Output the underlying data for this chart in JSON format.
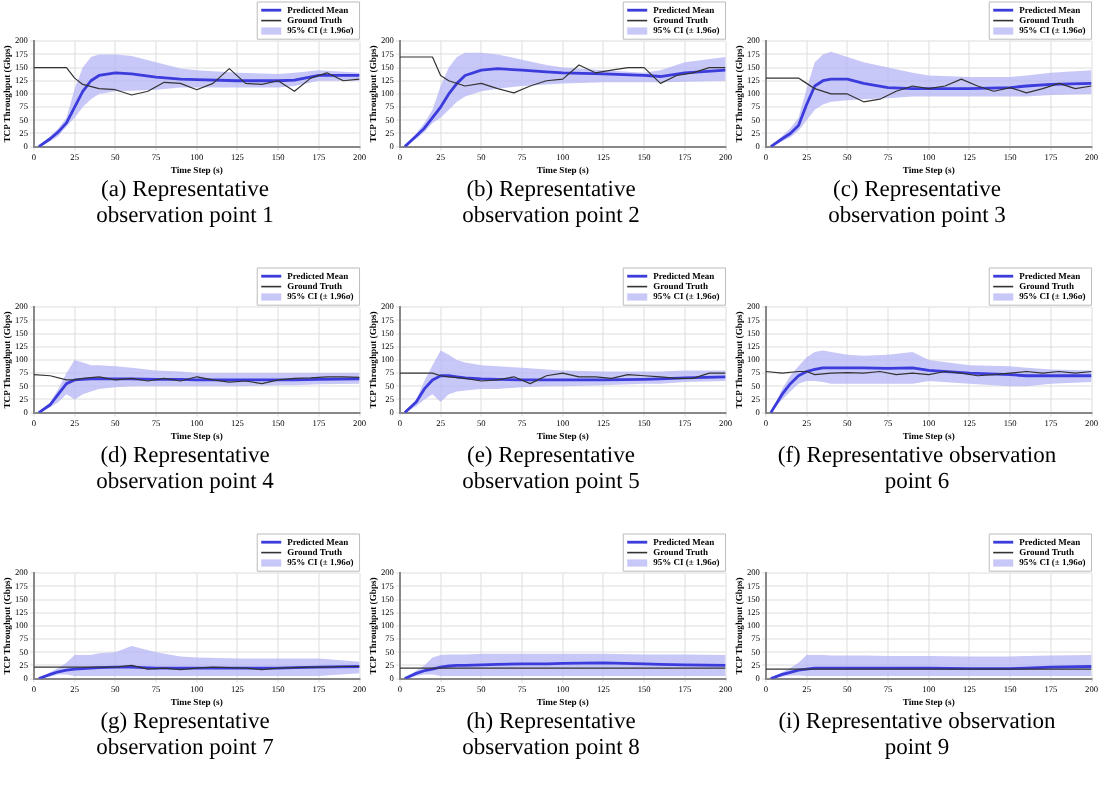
{
  "chart_data": [
    {
      "type": "line",
      "xlabel": "Time Step (s)",
      "ylabel": "TCP Throughput (Gbps)",
      "xlim": [
        0,
        200
      ],
      "xticks": [
        0,
        25,
        50,
        75,
        100,
        125,
        150,
        175,
        200
      ],
      "ylim": [
        0,
        200
      ],
      "yticks": [
        0,
        25,
        50,
        75,
        100,
        125,
        150,
        175,
        200
      ],
      "grid": true,
      "legend": "top right",
      "annotations": [
        "(a) Representative observation point 1"
      ],
      "series": [
        {
          "name": "Predicted Mean",
          "color": "#3c3cdc",
          "x": [
            3,
            10,
            15,
            20,
            25,
            30,
            35,
            40,
            50,
            60,
            75,
            90,
            100,
            125,
            150,
            160,
            175,
            200
          ],
          "values": [
            0,
            15,
            28,
            45,
            75,
            105,
            125,
            135,
            140,
            138,
            132,
            128,
            127,
            125,
            125,
            126,
            135,
            135
          ],
          "lower": [
            0,
            10,
            20,
            38,
            55,
            75,
            90,
            100,
            105,
            106,
            108,
            112,
            112,
            112,
            112,
            115,
            125,
            125
          ],
          "upper": [
            0,
            20,
            35,
            55,
            110,
            150,
            170,
            175,
            175,
            172,
            160,
            148,
            145,
            140,
            138,
            140,
            145,
            140
          ]
        },
        {
          "name": "Ground Truth",
          "color": "#333333",
          "x": [
            0,
            10,
            20,
            25,
            30,
            40,
            50,
            60,
            70,
            80,
            90,
            100,
            110,
            120,
            130,
            140,
            150,
            160,
            170,
            180,
            190,
            200
          ],
          "values": [
            150,
            150,
            150,
            130,
            118,
            110,
            108,
            98,
            105,
            122,
            120,
            108,
            120,
            148,
            120,
            118,
            125,
            105,
            130,
            140,
            125,
            128
          ]
        },
        {
          "name": "95% CI (± 1.96σ)",
          "type": "area",
          "color": "#b4b4f5"
        }
      ]
    },
    {
      "type": "line",
      "xlabel": "Time Step (s)",
      "ylabel": "TCP Throughput (Gbps)",
      "xlim": [
        0,
        200
      ],
      "xticks": [
        0,
        25,
        50,
        75,
        100,
        125,
        150,
        175,
        200
      ],
      "ylim": [
        0,
        200
      ],
      "yticks": [
        0,
        25,
        50,
        75,
        100,
        125,
        150,
        175,
        200
      ],
      "grid": true,
      "legend": "top right",
      "annotations": [
        "(b) Representative observation point 2"
      ],
      "series": [
        {
          "name": "Predicted Mean",
          "color": "#3c3cdc",
          "x": [
            3,
            10,
            15,
            20,
            25,
            30,
            35,
            40,
            50,
            60,
            75,
            90,
            100,
            125,
            150,
            160,
            175,
            200
          ],
          "values": [
            0,
            20,
            35,
            55,
            75,
            100,
            120,
            135,
            145,
            148,
            145,
            142,
            140,
            138,
            135,
            133,
            140,
            145
          ],
          "lower": [
            0,
            15,
            28,
            45,
            55,
            70,
            85,
            95,
            105,
            110,
            115,
            118,
            120,
            122,
            122,
            122,
            123,
            125
          ],
          "upper": [
            0,
            25,
            45,
            70,
            115,
            150,
            170,
            178,
            178,
            175,
            165,
            155,
            150,
            145,
            140,
            145,
            160,
            170
          ]
        },
        {
          "name": "Ground Truth",
          "color": "#333333",
          "x": [
            0,
            10,
            20,
            25,
            30,
            40,
            50,
            60,
            70,
            80,
            90,
            100,
            110,
            120,
            130,
            140,
            150,
            160,
            170,
            180,
            190,
            200
          ],
          "values": [
            170,
            170,
            170,
            135,
            125,
            115,
            120,
            110,
            102,
            115,
            125,
            128,
            155,
            140,
            145,
            150,
            150,
            120,
            135,
            140,
            150,
            150
          ]
        },
        {
          "name": "95% CI (± 1.96σ)",
          "type": "area",
          "color": "#b4b4f5"
        }
      ]
    },
    {
      "type": "line",
      "xlabel": "Time Step (s)",
      "ylabel": "TCP Throughput (Gbps)",
      "xlim": [
        0,
        200
      ],
      "xticks": [
        0,
        25,
        50,
        75,
        100,
        125,
        150,
        175,
        200
      ],
      "ylim": [
        0,
        200
      ],
      "yticks": [
        0,
        25,
        50,
        75,
        100,
        125,
        150,
        175,
        200
      ],
      "grid": true,
      "legend": "top right",
      "annotations": [
        "(c) Representative observation point 3"
      ],
      "series": [
        {
          "name": "Predicted Mean",
          "color": "#3c3cdc",
          "x": [
            3,
            10,
            15,
            20,
            25,
            30,
            35,
            40,
            50,
            60,
            75,
            90,
            100,
            125,
            150,
            160,
            175,
            200
          ],
          "values": [
            0,
            15,
            25,
            40,
            80,
            115,
            125,
            128,
            128,
            120,
            112,
            110,
            110,
            110,
            112,
            115,
            118,
            120
          ],
          "lower": [
            0,
            10,
            18,
            30,
            50,
            70,
            80,
            85,
            88,
            90,
            92,
            95,
            95,
            95,
            95,
            95,
            98,
            100
          ],
          "upper": [
            0,
            20,
            35,
            55,
            110,
            160,
            175,
            180,
            170,
            160,
            150,
            140,
            135,
            132,
            132,
            135,
            140,
            145
          ]
        },
        {
          "name": "Ground Truth",
          "color": "#333333",
          "x": [
            0,
            10,
            20,
            25,
            30,
            40,
            50,
            60,
            70,
            80,
            90,
            100,
            110,
            120,
            130,
            140,
            150,
            160,
            170,
            180,
            190,
            200
          ],
          "values": [
            130,
            130,
            130,
            120,
            110,
            100,
            100,
            85,
            90,
            105,
            115,
            110,
            115,
            128,
            115,
            105,
            112,
            102,
            110,
            120,
            110,
            115
          ]
        },
        {
          "name": "95% CI (± 1.96σ)",
          "type": "area",
          "color": "#b4b4f5"
        }
      ]
    },
    {
      "type": "line",
      "xlabel": "Time Step (s)",
      "ylabel": "TCP Throughput (Gbps)",
      "xlim": [
        0,
        200
      ],
      "xticks": [
        0,
        25,
        50,
        75,
        100,
        125,
        150,
        175,
        200
      ],
      "ylim": [
        0,
        200
      ],
      "yticks": [
        0,
        25,
        50,
        75,
        100,
        125,
        150,
        175,
        200
      ],
      "grid": true,
      "legend": "top right",
      "annotations": [
        "(d) Representative observation point 4"
      ],
      "series": [
        {
          "name": "Predicted Mean",
          "color": "#3c3cdc",
          "x": [
            3,
            10,
            15,
            20,
            25,
            30,
            35,
            40,
            50,
            60,
            75,
            90,
            100,
            125,
            150,
            160,
            175,
            200
          ],
          "values": [
            0,
            15,
            35,
            55,
            62,
            63,
            64,
            64,
            64,
            64,
            63,
            63,
            62,
            62,
            62,
            62,
            63,
            64
          ],
          "lower": [
            0,
            10,
            20,
            35,
            25,
            35,
            40,
            45,
            48,
            50,
            50,
            50,
            50,
            50,
            52,
            52,
            54,
            55
          ],
          "upper": [
            0,
            20,
            45,
            75,
            100,
            95,
            90,
            90,
            88,
            85,
            80,
            78,
            75,
            75,
            75,
            75,
            75,
            75
          ]
        },
        {
          "name": "Ground Truth",
          "color": "#333333",
          "x": [
            0,
            10,
            20,
            25,
            30,
            40,
            50,
            60,
            70,
            80,
            90,
            100,
            110,
            120,
            130,
            140,
            150,
            160,
            170,
            180,
            190,
            200
          ],
          "values": [
            72,
            70,
            62,
            62,
            65,
            68,
            62,
            65,
            60,
            65,
            60,
            68,
            62,
            58,
            60,
            55,
            62,
            65,
            66,
            68,
            68,
            67
          ]
        },
        {
          "name": "95% CI (± 1.96σ)",
          "type": "area",
          "color": "#b4b4f5"
        }
      ]
    },
    {
      "type": "line",
      "xlabel": "Time Step (s)",
      "ylabel": "TCP Throughput (Gbps)",
      "xlim": [
        0,
        200
      ],
      "xticks": [
        0,
        25,
        50,
        75,
        100,
        125,
        150,
        175,
        200
      ],
      "ylim": [
        0,
        200
      ],
      "yticks": [
        0,
        25,
        50,
        75,
        100,
        125,
        150,
        175,
        200
      ],
      "grid": true,
      "legend": "top right",
      "annotations": [
        "(e) Representative observation point 5"
      ],
      "series": [
        {
          "name": "Predicted Mean",
          "color": "#3c3cdc",
          "x": [
            3,
            10,
            15,
            20,
            25,
            30,
            35,
            40,
            50,
            60,
            75,
            90,
            100,
            125,
            150,
            160,
            175,
            200
          ],
          "values": [
            0,
            20,
            45,
            62,
            70,
            70,
            68,
            66,
            64,
            63,
            62,
            62,
            62,
            62,
            63,
            64,
            66,
            68
          ],
          "lower": [
            0,
            12,
            25,
            35,
            20,
            35,
            40,
            42,
            45,
            45,
            48,
            50,
            50,
            52,
            55,
            55,
            58,
            60
          ],
          "upper": [
            0,
            25,
            60,
            90,
            118,
            110,
            100,
            95,
            90,
            88,
            85,
            82,
            80,
            78,
            78,
            78,
            80,
            80
          ]
        },
        {
          "name": "Ground Truth",
          "color": "#333333",
          "x": [
            0,
            10,
            20,
            25,
            30,
            40,
            50,
            60,
            70,
            80,
            90,
            100,
            110,
            120,
            130,
            140,
            150,
            160,
            170,
            180,
            190,
            200
          ],
          "values": [
            75,
            75,
            75,
            70,
            68,
            65,
            60,
            62,
            68,
            55,
            70,
            75,
            68,
            68,
            65,
            72,
            70,
            68,
            65,
            65,
            75,
            75
          ]
        },
        {
          "name": "95% CI (± 1.96σ)",
          "type": "area",
          "color": "#b4b4f5"
        }
      ]
    },
    {
      "type": "line",
      "xlabel": "Time Step (s)",
      "ylabel": "TCP Throughput (Gbps)",
      "xlim": [
        0,
        200
      ],
      "xticks": [
        0,
        25,
        50,
        75,
        100,
        125,
        150,
        175,
        200
      ],
      "ylim": [
        0,
        200
      ],
      "yticks": [
        0,
        25,
        50,
        75,
        100,
        125,
        150,
        175,
        200
      ],
      "grid": true,
      "legend": "top right",
      "annotations": [
        "(f) Representative observation point 6"
      ],
      "series": [
        {
          "name": "Predicted Mean",
          "color": "#3c3cdc",
          "x": [
            3,
            10,
            15,
            20,
            25,
            30,
            35,
            40,
            50,
            60,
            75,
            90,
            100,
            125,
            150,
            160,
            175,
            200
          ],
          "values": [
            0,
            35,
            55,
            70,
            78,
            82,
            85,
            85,
            85,
            85,
            84,
            85,
            80,
            75,
            72,
            70,
            70,
            70
          ],
          "lower": [
            0,
            25,
            40,
            55,
            60,
            60,
            58,
            55,
            55,
            55,
            55,
            55,
            60,
            55,
            50,
            50,
            55,
            58
          ],
          "upper": [
            0,
            45,
            70,
            88,
            105,
            115,
            118,
            115,
            110,
            108,
            110,
            115,
            100,
            90,
            88,
            85,
            82,
            80
          ]
        },
        {
          "name": "Ground Truth",
          "color": "#333333",
          "x": [
            0,
            10,
            20,
            25,
            30,
            40,
            50,
            60,
            70,
            80,
            90,
            100,
            110,
            120,
            130,
            140,
            150,
            160,
            170,
            180,
            190,
            200
          ],
          "values": [
            78,
            75,
            78,
            78,
            72,
            75,
            76,
            75,
            78,
            72,
            75,
            72,
            78,
            75,
            70,
            72,
            75,
            78,
            75,
            78,
            75,
            78
          ]
        },
        {
          "name": "95% CI (± 1.96σ)",
          "type": "area",
          "color": "#b4b4f5"
        }
      ]
    },
    {
      "type": "line",
      "xlabel": "Time Step (s)",
      "ylabel": "TCP Throughput (Gbps)",
      "xlim": [
        0,
        200
      ],
      "xticks": [
        0,
        25,
        50,
        75,
        100,
        125,
        150,
        175,
        200
      ],
      "ylim": [
        0,
        200
      ],
      "yticks": [
        0,
        25,
        50,
        75,
        100,
        125,
        150,
        175,
        200
      ],
      "grid": true,
      "legend": "top right",
      "annotations": [
        "(g) Representative observation point 7"
      ],
      "series": [
        {
          "name": "Predicted Mean",
          "color": "#3c3cdc",
          "x": [
            3,
            10,
            15,
            20,
            25,
            30,
            35,
            40,
            50,
            60,
            75,
            90,
            100,
            125,
            150,
            160,
            175,
            200
          ],
          "values": [
            0,
            8,
            13,
            16,
            18,
            19,
            20,
            21,
            22,
            22,
            20,
            20,
            20,
            20,
            20,
            21,
            22,
            23
          ],
          "lower": [
            0,
            4,
            8,
            8,
            5,
            5,
            5,
            5,
            5,
            5,
            5,
            5,
            5,
            5,
            5,
            5,
            5,
            10
          ],
          "upper": [
            0,
            12,
            20,
            30,
            45,
            45,
            45,
            48,
            50,
            62,
            50,
            42,
            40,
            38,
            38,
            38,
            38,
            32
          ]
        },
        {
          "name": "Ground Truth",
          "color": "#333333",
          "x": [
            0,
            10,
            20,
            25,
            30,
            40,
            50,
            60,
            70,
            80,
            90,
            100,
            110,
            120,
            130,
            140,
            150,
            160,
            170,
            180,
            190,
            200
          ],
          "values": [
            22,
            22,
            22,
            22,
            22,
            22,
            22,
            25,
            18,
            20,
            17,
            20,
            22,
            21,
            20,
            17,
            20,
            21,
            22,
            22,
            23,
            23
          ]
        },
        {
          "name": "95% CI (± 1.96σ)",
          "type": "area",
          "color": "#b4b4f5"
        }
      ]
    },
    {
      "type": "line",
      "xlabel": "Time Step (s)",
      "ylabel": "TCP Throughput (Gbps)",
      "xlim": [
        0,
        200
      ],
      "xticks": [
        0,
        25,
        50,
        75,
        100,
        125,
        150,
        175,
        200
      ],
      "ylim": [
        0,
        200
      ],
      "yticks": [
        0,
        25,
        50,
        75,
        100,
        125,
        150,
        175,
        200
      ],
      "grid": true,
      "legend": "top right",
      "annotations": [
        "(h) Representative observation point 8"
      ],
      "series": [
        {
          "name": "Predicted Mean",
          "color": "#3c3cdc",
          "x": [
            3,
            10,
            15,
            20,
            25,
            30,
            35,
            40,
            50,
            60,
            75,
            90,
            100,
            125,
            150,
            160,
            175,
            200
          ],
          "values": [
            0,
            10,
            15,
            18,
            22,
            24,
            25,
            25,
            26,
            27,
            28,
            28,
            29,
            30,
            28,
            27,
            26,
            25
          ],
          "lower": [
            0,
            5,
            8,
            8,
            5,
            5,
            5,
            5,
            5,
            5,
            5,
            5,
            5,
            5,
            5,
            5,
            5,
            5
          ],
          "upper": [
            0,
            15,
            25,
            40,
            45,
            46,
            46,
            46,
            47,
            47,
            47,
            47,
            47,
            47,
            46,
            46,
            46,
            45
          ]
        },
        {
          "name": "Ground Truth",
          "color": "#333333",
          "x": [
            0,
            200
          ],
          "values": [
            20,
            20
          ]
        },
        {
          "name": "95% CI (± 1.96σ)",
          "type": "area",
          "color": "#b4b4f5"
        }
      ]
    },
    {
      "type": "line",
      "xlabel": "Time Step (s)",
      "ylabel": "TCP Throughput (Gbps)",
      "xlim": [
        0,
        200
      ],
      "xticks": [
        0,
        25,
        50,
        75,
        100,
        125,
        150,
        175,
        200
      ],
      "ylim": [
        0,
        200
      ],
      "yticks": [
        0,
        25,
        50,
        75,
        100,
        125,
        150,
        175,
        200
      ],
      "grid": true,
      "legend": "top right",
      "annotations": [
        "(i) Representative observation point 9"
      ],
      "series": [
        {
          "name": "Predicted Mean",
          "color": "#3c3cdc",
          "x": [
            3,
            10,
            15,
            20,
            25,
            30,
            35,
            40,
            50,
            60,
            75,
            90,
            100,
            125,
            150,
            160,
            175,
            200
          ],
          "values": [
            0,
            8,
            12,
            16,
            18,
            20,
            20,
            20,
            20,
            20,
            20,
            20,
            20,
            19,
            19,
            20,
            22,
            23
          ],
          "lower": [
            0,
            4,
            6,
            6,
            5,
            5,
            5,
            5,
            5,
            5,
            5,
            5,
            5,
            5,
            5,
            5,
            5,
            5
          ],
          "upper": [
            0,
            12,
            20,
            30,
            45,
            45,
            45,
            44,
            44,
            44,
            43,
            43,
            43,
            42,
            42,
            43,
            44,
            45
          ]
        },
        {
          "name": "Ground Truth",
          "color": "#333333",
          "x": [
            0,
            200
          ],
          "values": [
            18,
            18
          ]
        },
        {
          "name": "95% CI (± 1.96σ)",
          "type": "area",
          "color": "#b4b4f5"
        }
      ]
    }
  ]
}
